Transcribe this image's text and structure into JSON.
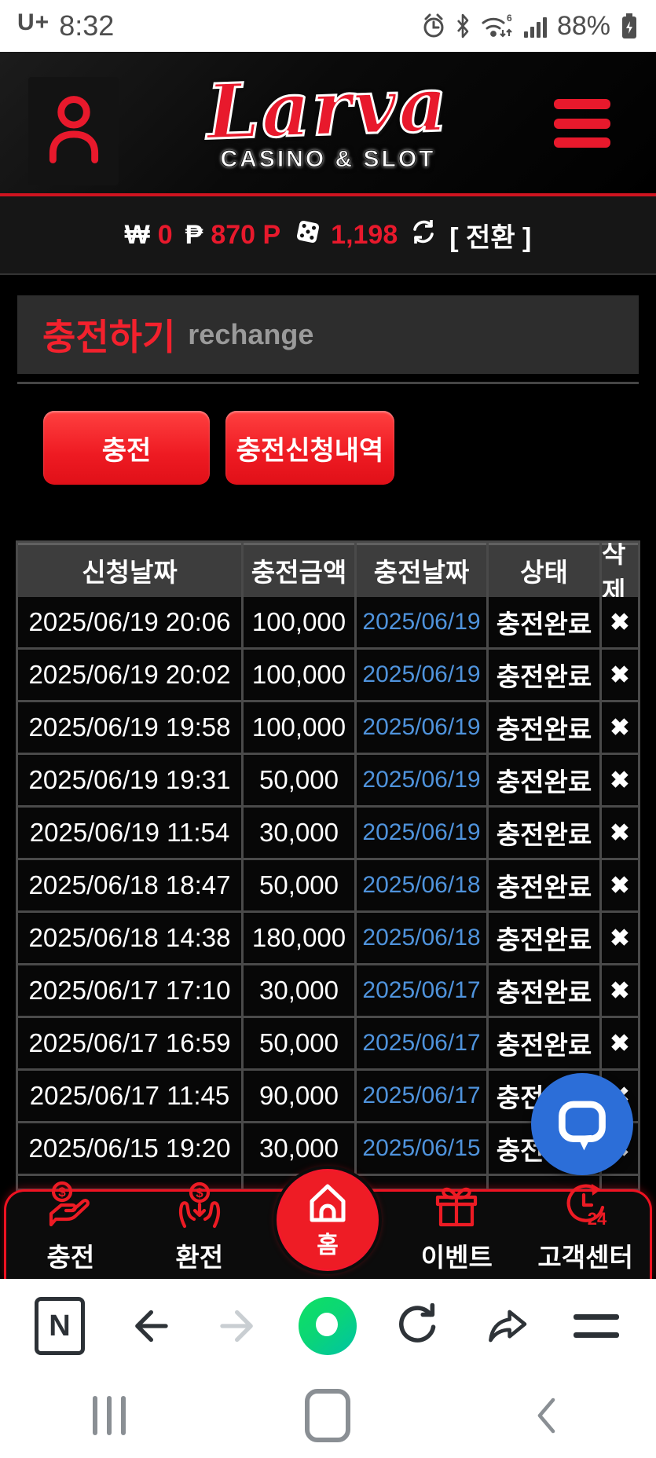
{
  "status_bar": {
    "carrier": "U+",
    "time": "8:32",
    "battery": "88%"
  },
  "header": {
    "logo": "Larva",
    "logo_sub": "CASINO & SLOT"
  },
  "balance_bar": {
    "won_symbol": "₩",
    "won_value": "0",
    "peso_symbol": "₱",
    "peso_value": "870 P",
    "chip_value": "1,198",
    "convert_label": "[ 전환 ]"
  },
  "page": {
    "title": "충전하기",
    "subtitle": "rechange"
  },
  "actions": {
    "charge": "충전",
    "history": "충전신청내역"
  },
  "table": {
    "headers": [
      "신청날짜",
      "충전금액",
      "충전날짜",
      "상태",
      "삭제"
    ],
    "delete_glyph": "✖",
    "rows": [
      {
        "applied": "2025/06/19 20:06",
        "amount": "100,000",
        "charged": "2025/06/19",
        "status": "충전완료"
      },
      {
        "applied": "2025/06/19 20:02",
        "amount": "100,000",
        "charged": "2025/06/19",
        "status": "충전완료"
      },
      {
        "applied": "2025/06/19 19:58",
        "amount": "100,000",
        "charged": "2025/06/19",
        "status": "충전완료"
      },
      {
        "applied": "2025/06/19 19:31",
        "amount": "50,000",
        "charged": "2025/06/19",
        "status": "충전완료"
      },
      {
        "applied": "2025/06/19 11:54",
        "amount": "30,000",
        "charged": "2025/06/19",
        "status": "충전완료"
      },
      {
        "applied": "2025/06/18 18:47",
        "amount": "50,000",
        "charged": "2025/06/18",
        "status": "충전완료"
      },
      {
        "applied": "2025/06/18 14:38",
        "amount": "180,000",
        "charged": "2025/06/18",
        "status": "충전완료"
      },
      {
        "applied": "2025/06/17 17:10",
        "amount": "30,000",
        "charged": "2025/06/17",
        "status": "충전완료"
      },
      {
        "applied": "2025/06/17 16:59",
        "amount": "50,000",
        "charged": "2025/06/17",
        "status": "충전완료"
      },
      {
        "applied": "2025/06/17 11:45",
        "amount": "90,000",
        "charged": "2025/06/17",
        "status": "충전완료"
      },
      {
        "applied": "2025/06/15 19:20",
        "amount": "30,000",
        "charged": "2025/06/15",
        "status": "충전완료"
      }
    ]
  },
  "bottom_nav": {
    "items": [
      {
        "label": "충전",
        "icon": "charge-icon"
      },
      {
        "label": "환전",
        "icon": "exchange-icon"
      },
      {
        "label": "홈",
        "icon": "home-icon"
      },
      {
        "label": "이벤트",
        "icon": "gift-icon"
      },
      {
        "label": "고객센터",
        "icon": "support-24-icon"
      }
    ]
  },
  "colors": {
    "accent_red": "#ed1b24",
    "link_blue": "#4f93dc",
    "chat_blue": "#2c6ed8",
    "naver_green": "#0fd675"
  }
}
